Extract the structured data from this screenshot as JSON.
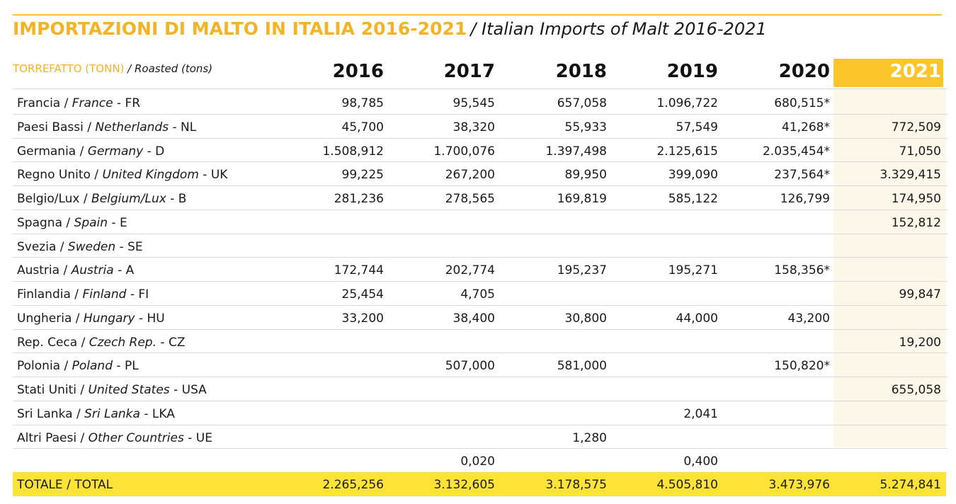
{
  "title": {
    "italian": "IMPORTAZIONI DI MALTO IN ITALIA 2016-2021",
    "english": "/ Italian Imports of Malt 2016-2021"
  },
  "subheading": {
    "italian": "TORREFATTO (TONN)",
    "english": "/ Roasted (tons)"
  },
  "years": [
    "2016",
    "2017",
    "2018",
    "2019",
    "2020",
    "2021"
  ],
  "colors": {
    "accent": "#f5b324",
    "highlight": "#fcc52a",
    "total_bar": "#fde336",
    "highlight_col": "#fdf7ea"
  },
  "rows": [
    {
      "it": "Francia",
      "en": "France",
      "code": "FR",
      "values": [
        "98,785",
        "95,545",
        "657,058",
        "1.096,722",
        "680,515*",
        ""
      ]
    },
    {
      "it": "Paesi Bassi",
      "en": "Netherlands",
      "code": "NL",
      "values": [
        "45,700",
        "38,320",
        "55,933",
        "57,549",
        "41,268*",
        "772,509"
      ]
    },
    {
      "it": "Germania",
      "en": "Germany",
      "code": "D",
      "values": [
        "1.508,912",
        "1.700,076",
        "1.397,498",
        "2.125,615",
        "2.035,454*",
        "71,050"
      ]
    },
    {
      "it": "Regno Unito",
      "en": "United Kingdom",
      "code": "UK",
      "values": [
        "99,225",
        "267,200",
        "89,950",
        "399,090",
        "237,564*",
        "3.329,415"
      ]
    },
    {
      "it": "Belgio/Lux",
      "en": "Belgium/Lux",
      "code": "B",
      "values": [
        "281,236",
        "278,565",
        "169,819",
        "585,122",
        "126,799",
        "174,950"
      ]
    },
    {
      "it": "Spagna",
      "en": "Spain",
      "code": "E",
      "values": [
        "",
        "",
        "",
        "",
        "",
        "152,812"
      ]
    },
    {
      "it": "Svezia",
      "en": "Sweden",
      "code": "SE",
      "values": [
        "",
        "",
        "",
        "",
        "",
        ""
      ]
    },
    {
      "it": "Austria",
      "en": "Austria",
      "code": "A",
      "values": [
        "172,744",
        "202,774",
        "195,237",
        "195,271",
        "158,356*",
        ""
      ]
    },
    {
      "it": "Finlandia",
      "en": "Finland",
      "code": "FI",
      "values": [
        "25,454",
        "4,705",
        "",
        "",
        "",
        "99,847"
      ]
    },
    {
      "it": "Ungheria",
      "en": "Hungary",
      "code": "HU",
      "values": [
        "33,200",
        "38,400",
        "30,800",
        "44,000",
        "43,200",
        ""
      ]
    },
    {
      "it": "Rep. Ceca",
      "en": "Czech Rep.",
      "code": "CZ",
      "values": [
        "",
        "",
        "",
        "",
        "",
        "19,200"
      ]
    },
    {
      "it": "Polonia",
      "en": "Poland",
      "code": "PL",
      "values": [
        "",
        "507,000",
        "581,000",
        "",
        "150,820*",
        ""
      ]
    },
    {
      "it": "Stati Uniti",
      "en": "United States",
      "code": "USA",
      "values": [
        "",
        "",
        "",
        "",
        "",
        "655,058"
      ]
    },
    {
      "it": "Sri Lanka",
      "en": "Sri Lanka",
      "code": "LKA",
      "values": [
        "",
        "",
        "",
        "2,041",
        "",
        ""
      ]
    },
    {
      "it": "Altri Paesi",
      "en": "Other Countries",
      "code": "UE",
      "values": [
        "",
        "",
        "1,280",
        "",
        "",
        ""
      ]
    },
    {
      "it": "",
      "en": "",
      "code": "",
      "values": [
        "",
        "0,020",
        "",
        "0,400",
        "",
        ""
      ]
    }
  ],
  "total": {
    "it": "TOTALE",
    "en": "TOTAL",
    "values": [
      "2.265,256",
      "3.132,605",
      "3.178,575",
      "4.505,810",
      "3.473,976",
      "5.274,841"
    ]
  }
}
